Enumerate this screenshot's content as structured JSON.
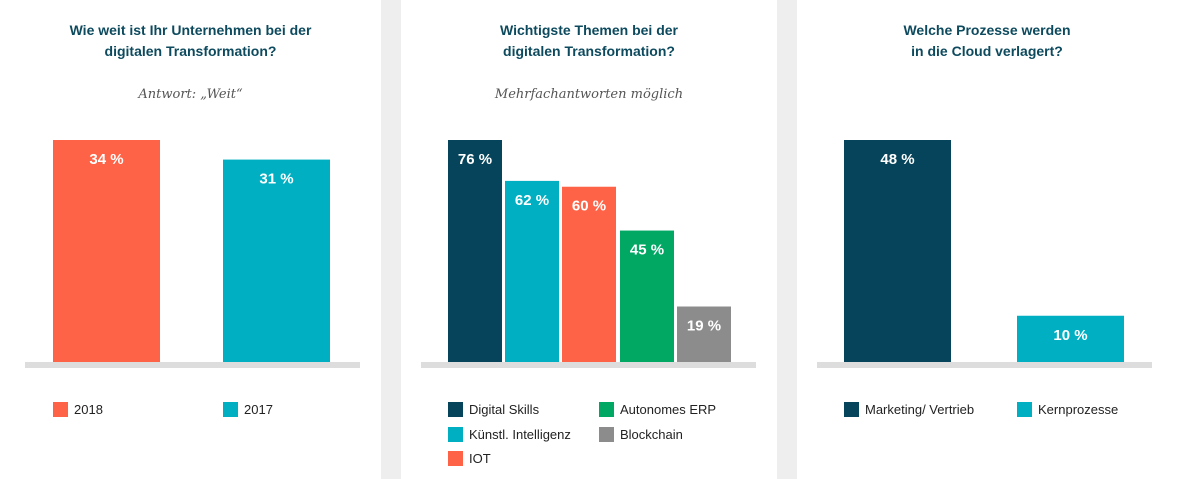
{
  "colors": {
    "orange": "#ff6347",
    "teal": "#00afc2",
    "navy": "#05445a",
    "green": "#00a864",
    "gray": "#8c8c8c",
    "baseline": "#dddddd",
    "title": "#0d4a5e"
  },
  "chart_data": [
    {
      "type": "bar",
      "title": [
        "Wie weit ist Ihr Unternehmen bei der",
        "digitalen Transformation?"
      ],
      "subtitle": "Antwort: „Weit“",
      "categories": [
        "2018",
        "2017"
      ],
      "values": [
        34,
        31
      ],
      "value_labels": [
        "34 %",
        "31 %"
      ],
      "bar_colors": [
        "#ff6347",
        "#00afc2"
      ],
      "ylim": [
        0,
        40
      ],
      "legend": [
        {
          "label": "2018",
          "color": "#ff6347"
        },
        {
          "label": "2017",
          "color": "#00afc2"
        }
      ]
    },
    {
      "type": "bar",
      "title": [
        "Wichtigste Themen bei der",
        "digitalen Transformation?"
      ],
      "subtitle": "Mehrfachantworten möglich",
      "categories": [
        "Digital Skills",
        "Künstl. Intelligenz",
        "IOT",
        "Autonomes ERP",
        "Blockchain"
      ],
      "values": [
        76,
        62,
        60,
        45,
        19
      ],
      "value_labels": [
        "76 %",
        "62 %",
        "60 %",
        "45 %",
        "19 %"
      ],
      "bar_colors": [
        "#05445a",
        "#00afc2",
        "#ff6347",
        "#00a864",
        "#8c8c8c"
      ],
      "ylim": [
        0,
        80
      ],
      "legend": [
        {
          "label": "Digital Skills",
          "color": "#05445a"
        },
        {
          "label": "Autonomes ERP",
          "color": "#00a864"
        },
        {
          "label": "Künstl. Intelligenz",
          "color": "#00afc2"
        },
        {
          "label": "Blockchain",
          "color": "#8c8c8c"
        },
        {
          "label": "IOT",
          "color": "#ff6347"
        }
      ]
    },
    {
      "type": "bar",
      "title": [
        "Welche Prozesse werden",
        "in die Cloud verlagert?"
      ],
      "subtitle": "",
      "categories": [
        "Marketing/ Vertrieb",
        "Kernprozesse"
      ],
      "values": [
        48,
        10
      ],
      "value_labels": [
        "48 %",
        "10 %"
      ],
      "bar_colors": [
        "#05445a",
        "#00afc2"
      ],
      "ylim": [
        0,
        50
      ],
      "legend": [
        {
          "label": "Marketing/ Vertrieb",
          "color": "#05445a"
        },
        {
          "label": "Kernprozesse",
          "color": "#00afc2"
        }
      ]
    }
  ]
}
